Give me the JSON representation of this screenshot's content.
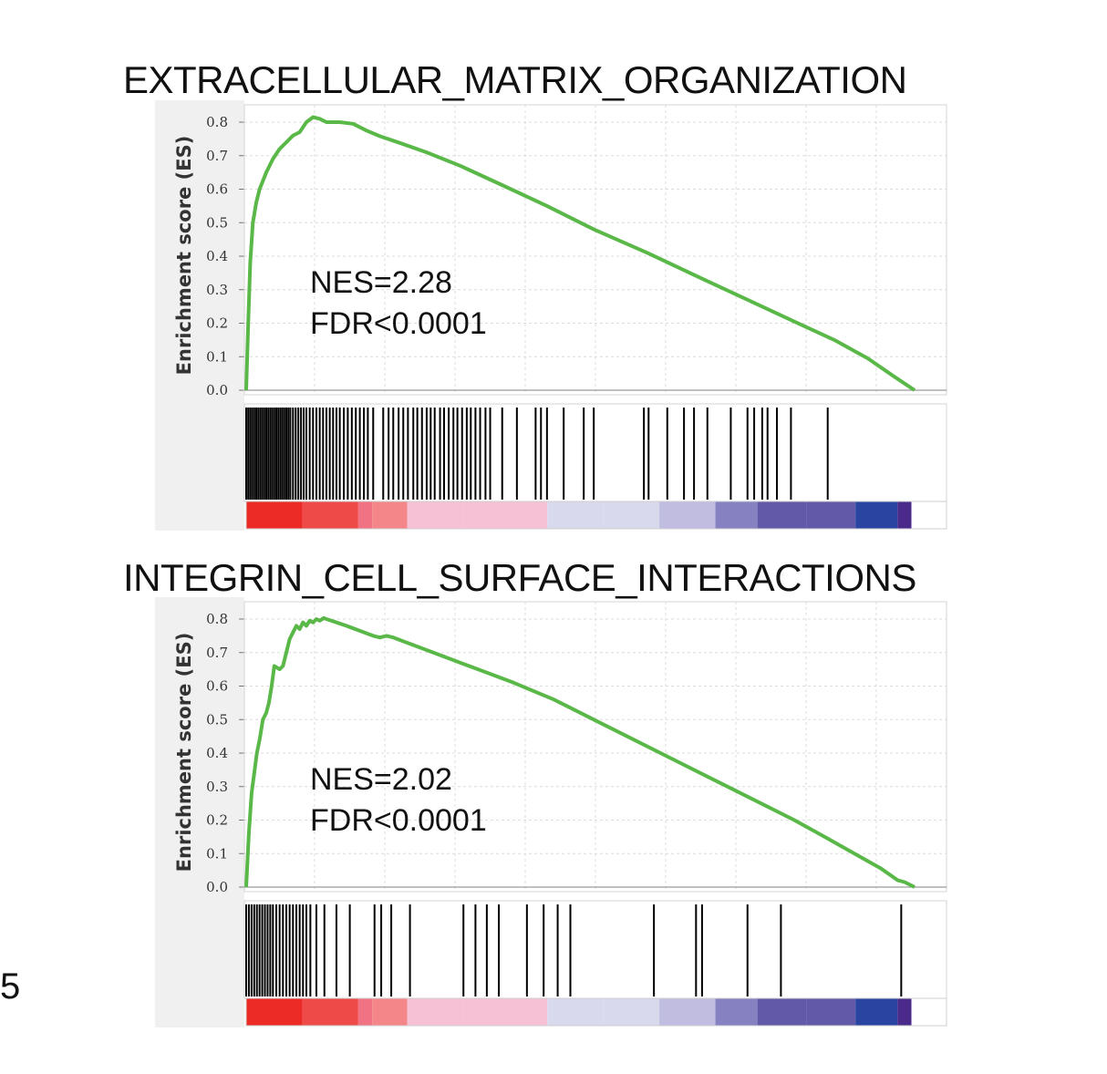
{
  "page_label": "5",
  "chart_data": [
    {
      "type": "line",
      "title": "EXTRACELLULAR_MATRIX_ORGANIZATION",
      "ylabel": "Enrichment score (ES)",
      "y_ticks": [
        "0.0",
        "0.1",
        "0.2",
        "0.3",
        "0.4",
        "0.5",
        "0.6",
        "0.7",
        "0.8"
      ],
      "ylim": [
        0,
        0.8
      ],
      "grid": true,
      "annotations": [
        "NES=2.28",
        "FDR<0.0001"
      ],
      "line_color": "#5ab848",
      "x_range": [
        0,
        100
      ],
      "es_curve": [
        [
          0,
          0
        ],
        [
          0.3,
          0.2
        ],
        [
          0.6,
          0.38
        ],
        [
          1,
          0.5
        ],
        [
          1.5,
          0.56
        ],
        [
          2,
          0.6
        ],
        [
          3,
          0.65
        ],
        [
          4,
          0.69
        ],
        [
          5,
          0.72
        ],
        [
          6,
          0.74
        ],
        [
          7,
          0.76
        ],
        [
          8,
          0.77
        ],
        [
          9,
          0.8
        ],
        [
          10,
          0.815
        ],
        [
          11,
          0.81
        ],
        [
          12,
          0.8
        ],
        [
          14,
          0.8
        ],
        [
          16,
          0.795
        ],
        [
          18,
          0.775
        ],
        [
          20,
          0.758
        ],
        [
          23,
          0.738
        ],
        [
          27,
          0.71
        ],
        [
          32,
          0.67
        ],
        [
          38,
          0.615
        ],
        [
          45,
          0.55
        ],
        [
          52,
          0.48
        ],
        [
          60,
          0.41
        ],
        [
          68,
          0.335
        ],
        [
          75,
          0.27
        ],
        [
          82,
          0.205
        ],
        [
          88,
          0.15
        ],
        [
          93,
          0.095
        ],
        [
          97,
          0.04
        ],
        [
          100,
          0.0
        ]
      ],
      "hit_positions": [
        0,
        0.3,
        0.6,
        0.9,
        1.2,
        1.5,
        1.8,
        2.1,
        2.4,
        2.7,
        3.0,
        3.3,
        3.6,
        3.9,
        4.2,
        4.5,
        4.8,
        5.1,
        5.4,
        5.7,
        6.0,
        6.3,
        6.6,
        7.0,
        7.4,
        7.8,
        8.2,
        8.6,
        9.0,
        9.5,
        10,
        10.5,
        11,
        11.5,
        12,
        12.5,
        13,
        13.5,
        14,
        14.6,
        15.2,
        15.8,
        16.4,
        17,
        17.6,
        18.2,
        19,
        20.5,
        21.3,
        22,
        22.8,
        23.5,
        24.2,
        25,
        25.6,
        26.3,
        27,
        27.6,
        28.2,
        29,
        29.6,
        30.3,
        31,
        31.6,
        32.3,
        33,
        33.6,
        34.3,
        35,
        35.8,
        36.5,
        38.3,
        40.5,
        43.3,
        44.1,
        45,
        47.5,
        50.5,
        52,
        59.5,
        60.2,
        63,
        65.5,
        67,
        69,
        72.5,
        75,
        76,
        77.2,
        78,
        79.4,
        81.5,
        87
      ],
      "color_bar": [
        "#ec2b27",
        "#ee4a48",
        "#f17283",
        "#f4868a",
        "#f6c0d5",
        "#f6c0d5",
        "#d9d9ee",
        "#d9d9ee",
        "#c0bde0",
        "#8681c1",
        "#625aa9",
        "#625aa9",
        "#2a44a2",
        "#4a2a8a",
        "#ffffff"
      ],
      "color_bar_stops": [
        0,
        8,
        16,
        18,
        23,
        31,
        43,
        51,
        59,
        67,
        73,
        80,
        87,
        93,
        95,
        100
      ]
    },
    {
      "type": "line",
      "title": "INTEGRIN_CELL_SURFACE_INTERACTIONS",
      "ylabel": "Enrichment score (ES)",
      "y_ticks": [
        "0.0",
        "0.1",
        "0.2",
        "0.3",
        "0.4",
        "0.5",
        "0.6",
        "0.7",
        "0.8"
      ],
      "ylim": [
        0,
        0.8
      ],
      "grid": true,
      "annotations": [
        "NES=2.02",
        "FDR<0.0001"
      ],
      "line_color": "#5ab848",
      "x_range": [
        0,
        100
      ],
      "es_curve": [
        [
          0,
          0
        ],
        [
          0.4,
          0.16
        ],
        [
          0.8,
          0.28
        ],
        [
          1.2,
          0.34
        ],
        [
          1.6,
          0.4
        ],
        [
          2,
          0.44
        ],
        [
          2.5,
          0.5
        ],
        [
          3,
          0.52
        ],
        [
          3.4,
          0.55
        ],
        [
          3.8,
          0.6
        ],
        [
          4.2,
          0.66
        ],
        [
          5,
          0.65
        ],
        [
          5.5,
          0.66
        ],
        [
          6,
          0.7
        ],
        [
          6.5,
          0.74
        ],
        [
          7,
          0.76
        ],
        [
          7.5,
          0.78
        ],
        [
          8,
          0.77
        ],
        [
          8.5,
          0.79
        ],
        [
          9,
          0.78
        ],
        [
          9.5,
          0.795
        ],
        [
          10,
          0.79
        ],
        [
          10.5,
          0.8
        ],
        [
          11,
          0.795
        ],
        [
          11.6,
          0.803
        ],
        [
          12,
          0.8
        ],
        [
          13.5,
          0.79
        ],
        [
          15,
          0.78
        ],
        [
          17,
          0.765
        ],
        [
          19,
          0.75
        ],
        [
          20,
          0.745
        ],
        [
          21,
          0.75
        ],
        [
          22,
          0.745
        ],
        [
          24,
          0.73
        ],
        [
          28,
          0.7
        ],
        [
          34,
          0.655
        ],
        [
          40,
          0.61
        ],
        [
          46,
          0.56
        ],
        [
          52,
          0.5
        ],
        [
          58,
          0.44
        ],
        [
          64,
          0.38
        ],
        [
          70,
          0.32
        ],
        [
          76,
          0.26
        ],
        [
          82,
          0.2
        ],
        [
          87,
          0.145
        ],
        [
          91,
          0.1
        ],
        [
          95,
          0.055
        ],
        [
          97.5,
          0.02
        ],
        [
          98.5,
          0.015
        ],
        [
          100,
          0
        ]
      ],
      "hit_positions": [
        0,
        0.4,
        0.8,
        1.2,
        1.6,
        2.0,
        2.4,
        2.8,
        3.2,
        3.6,
        4.0,
        4.5,
        5.0,
        5.5,
        6.0,
        6.5,
        7.0,
        7.5,
        8.0,
        8.5,
        9.0,
        9.6,
        10.5,
        11.7,
        13.5,
        15.5,
        19.2,
        20.2,
        21.7,
        24.5,
        32.5,
        34.3,
        36,
        37.8,
        42,
        44.5,
        46.6,
        48.5,
        61,
        67.3,
        68.2,
        75,
        80,
        98
      ]
    }
  ]
}
